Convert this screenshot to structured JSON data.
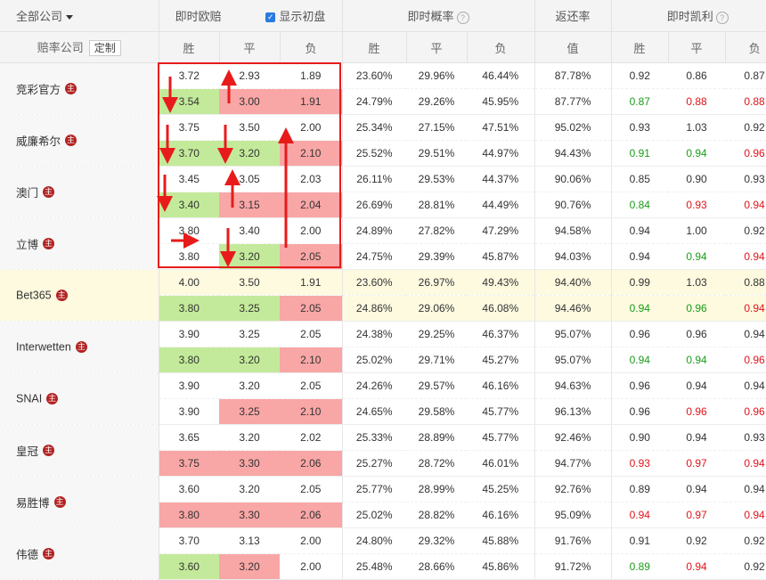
{
  "header": {
    "all_companies": "全部公司",
    "live_euro": "即时欧赔",
    "show_initial": "显示初盘",
    "live_prob": "即时概率",
    "return_rate": "返还率",
    "live_kelly": "即时凯利",
    "odds_company": "赔率公司",
    "customize": "定制",
    "win": "胜",
    "draw": "平",
    "lose": "负",
    "value": "值",
    "help_icon": "question-icon",
    "lead_icon": "主"
  },
  "colors": {
    "green_bg": "#c3ea9a",
    "red_bg": "#f9a6a6",
    "highlight_row": "#fdfae0",
    "green_text": "#1a9c1a",
    "red_text": "#e0141c",
    "annotation_red": "#e81b1b"
  },
  "companies": [
    {
      "name": "竞彩官方",
      "rows": [
        {
          "o": [
            "3.72",
            "2.93",
            "1.89"
          ],
          "oc": [
            "",
            "",
            ""
          ],
          "p": [
            "23.60%",
            "29.96%",
            "46.44%"
          ],
          "ret": "87.78%",
          "k": [
            "0.92",
            "0.86",
            "0.87"
          ],
          "kc": [
            "",
            "",
            ""
          ]
        },
        {
          "o": [
            "3.54",
            "3.00",
            "1.91"
          ],
          "oc": [
            "g",
            "r",
            "r"
          ],
          "p": [
            "24.79%",
            "29.26%",
            "45.95%"
          ],
          "ret": "87.77%",
          "k": [
            "0.87",
            "0.88",
            "0.88"
          ],
          "kc": [
            "cg",
            "cr",
            "cr"
          ]
        }
      ]
    },
    {
      "name": "威廉希尔",
      "rows": [
        {
          "o": [
            "3.75",
            "3.50",
            "2.00"
          ],
          "oc": [
            "",
            "",
            ""
          ],
          "p": [
            "25.34%",
            "27.15%",
            "47.51%"
          ],
          "ret": "95.02%",
          "k": [
            "0.93",
            "1.03",
            "0.92"
          ],
          "kc": [
            "",
            "",
            ""
          ]
        },
        {
          "o": [
            "3.70",
            "3.20",
            "2.10"
          ],
          "oc": [
            "g",
            "g",
            "r"
          ],
          "p": [
            "25.52%",
            "29.51%",
            "44.97%"
          ],
          "ret": "94.43%",
          "k": [
            "0.91",
            "0.94",
            "0.96"
          ],
          "kc": [
            "cg",
            "cg",
            "cr"
          ]
        }
      ]
    },
    {
      "name": "澳门",
      "rows": [
        {
          "o": [
            "3.45",
            "3.05",
            "2.03"
          ],
          "oc": [
            "",
            "",
            ""
          ],
          "p": [
            "26.11%",
            "29.53%",
            "44.37%"
          ],
          "ret": "90.06%",
          "k": [
            "0.85",
            "0.90",
            "0.93"
          ],
          "kc": [
            "",
            "",
            ""
          ]
        },
        {
          "o": [
            "3.40",
            "3.15",
            "2.04"
          ],
          "oc": [
            "g",
            "r",
            "r"
          ],
          "p": [
            "26.69%",
            "28.81%",
            "44.49%"
          ],
          "ret": "90.76%",
          "k": [
            "0.84",
            "0.93",
            "0.94"
          ],
          "kc": [
            "cg",
            "cr",
            "cr"
          ]
        }
      ]
    },
    {
      "name": "立博",
      "rows": [
        {
          "o": [
            "3.80",
            "3.40",
            "2.00"
          ],
          "oc": [
            "",
            "",
            ""
          ],
          "p": [
            "24.89%",
            "27.82%",
            "47.29%"
          ],
          "ret": "94.58%",
          "k": [
            "0.94",
            "1.00",
            "0.92"
          ],
          "kc": [
            "",
            "",
            ""
          ]
        },
        {
          "o": [
            "3.80",
            "3.20",
            "2.05"
          ],
          "oc": [
            "",
            "g",
            "r"
          ],
          "p": [
            "24.75%",
            "29.39%",
            "45.87%"
          ],
          "ret": "94.03%",
          "k": [
            "0.94",
            "0.94",
            "0.94"
          ],
          "kc": [
            "",
            "cg",
            "cr"
          ]
        }
      ]
    },
    {
      "name": "Bet365",
      "highlight": true,
      "rows": [
        {
          "o": [
            "4.00",
            "3.50",
            "1.91"
          ],
          "oc": [
            "",
            "",
            ""
          ],
          "p": [
            "23.60%",
            "26.97%",
            "49.43%"
          ],
          "ret": "94.40%",
          "k": [
            "0.99",
            "1.03",
            "0.88"
          ],
          "kc": [
            "",
            "",
            ""
          ]
        },
        {
          "o": [
            "3.80",
            "3.25",
            "2.05"
          ],
          "oc": [
            "g",
            "g",
            "r"
          ],
          "p": [
            "24.86%",
            "29.06%",
            "46.08%"
          ],
          "ret": "94.46%",
          "k": [
            "0.94",
            "0.96",
            "0.94"
          ],
          "kc": [
            "cg",
            "cg",
            "cr"
          ]
        }
      ]
    },
    {
      "name": "Interwetten",
      "rows": [
        {
          "o": [
            "3.90",
            "3.25",
            "2.05"
          ],
          "oc": [
            "",
            "",
            ""
          ],
          "p": [
            "24.38%",
            "29.25%",
            "46.37%"
          ],
          "ret": "95.07%",
          "k": [
            "0.96",
            "0.96",
            "0.94"
          ],
          "kc": [
            "",
            "",
            ""
          ]
        },
        {
          "o": [
            "3.80",
            "3.20",
            "2.10"
          ],
          "oc": [
            "g",
            "g",
            "r"
          ],
          "p": [
            "25.02%",
            "29.71%",
            "45.27%"
          ],
          "ret": "95.07%",
          "k": [
            "0.94",
            "0.94",
            "0.96"
          ],
          "kc": [
            "cg",
            "cg",
            "cr"
          ]
        }
      ]
    },
    {
      "name": "SNAI",
      "rows": [
        {
          "o": [
            "3.90",
            "3.20",
            "2.05"
          ],
          "oc": [
            "",
            "",
            ""
          ],
          "p": [
            "24.26%",
            "29.57%",
            "46.16%"
          ],
          "ret": "94.63%",
          "k": [
            "0.96",
            "0.94",
            "0.94"
          ],
          "kc": [
            "",
            "",
            ""
          ]
        },
        {
          "o": [
            "3.90",
            "3.25",
            "2.10"
          ],
          "oc": [
            "",
            "r",
            "r"
          ],
          "p": [
            "24.65%",
            "29.58%",
            "45.77%"
          ],
          "ret": "96.13%",
          "k": [
            "0.96",
            "0.96",
            "0.96"
          ],
          "kc": [
            "",
            "cr",
            "cr"
          ]
        }
      ]
    },
    {
      "name": "皇冠",
      "rows": [
        {
          "o": [
            "3.65",
            "3.20",
            "2.02"
          ],
          "oc": [
            "",
            "",
            ""
          ],
          "p": [
            "25.33%",
            "28.89%",
            "45.77%"
          ],
          "ret": "92.46%",
          "k": [
            "0.90",
            "0.94",
            "0.93"
          ],
          "kc": [
            "",
            "",
            ""
          ]
        },
        {
          "o": [
            "3.75",
            "3.30",
            "2.06"
          ],
          "oc": [
            "r",
            "r",
            "r"
          ],
          "p": [
            "25.27%",
            "28.72%",
            "46.01%"
          ],
          "ret": "94.77%",
          "k": [
            "0.93",
            "0.97",
            "0.94"
          ],
          "kc": [
            "cr",
            "cr",
            "cr"
          ]
        }
      ]
    },
    {
      "name": "易胜博",
      "rows": [
        {
          "o": [
            "3.60",
            "3.20",
            "2.05"
          ],
          "oc": [
            "",
            "",
            ""
          ],
          "p": [
            "25.77%",
            "28.99%",
            "45.25%"
          ],
          "ret": "92.76%",
          "k": [
            "0.89",
            "0.94",
            "0.94"
          ],
          "kc": [
            "",
            "",
            ""
          ]
        },
        {
          "o": [
            "3.80",
            "3.30",
            "2.06"
          ],
          "oc": [
            "r",
            "r",
            "r"
          ],
          "p": [
            "25.02%",
            "28.82%",
            "46.16%"
          ],
          "ret": "95.09%",
          "k": [
            "0.94",
            "0.97",
            "0.94"
          ],
          "kc": [
            "cr",
            "cr",
            "cr"
          ]
        }
      ]
    },
    {
      "name": "伟德",
      "rows": [
        {
          "o": [
            "3.70",
            "3.13",
            "2.00"
          ],
          "oc": [
            "",
            "",
            ""
          ],
          "p": [
            "24.80%",
            "29.32%",
            "45.88%"
          ],
          "ret": "91.76%",
          "k": [
            "0.91",
            "0.92",
            "0.92"
          ],
          "kc": [
            "",
            "",
            ""
          ]
        },
        {
          "o": [
            "3.60",
            "3.20",
            "2.00"
          ],
          "oc": [
            "g",
            "r",
            ""
          ],
          "p": [
            "25.48%",
            "28.66%",
            "45.86%"
          ],
          "ret": "91.72%",
          "k": [
            "0.89",
            "0.94",
            "0.92"
          ],
          "kc": [
            "cg",
            "cr",
            ""
          ]
        }
      ]
    }
  ]
}
